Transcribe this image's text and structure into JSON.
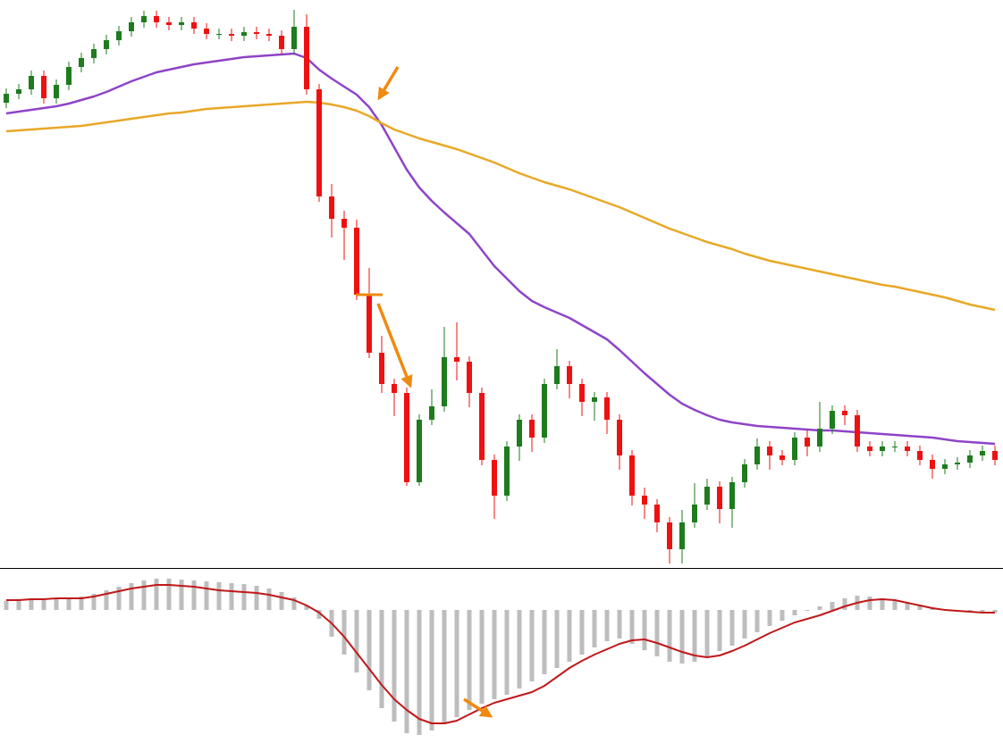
{
  "chart_data": [
    {
      "type": "candlestick",
      "up_color": "#1e7b1e",
      "down_color": "#ee1111",
      "ylim": [
        0,
        636
      ],
      "open": [
        521,
        531,
        536,
        551,
        526,
        541,
        561,
        571,
        581,
        591,
        601,
        611,
        618,
        611,
        608,
        611,
        604,
        598,
        598,
        596,
        600,
        598,
        596,
        581,
        606,
        536,
        416,
        391,
        381,
        306,
        241,
        206,
        196,
        96,
        166,
        181,
        236,
        231,
        196,
        121,
        81,
        136,
        166,
        146,
        206,
        226,
        206,
        186,
        191,
        166,
        126,
        81,
        71,
        51,
        21,
        51,
        71,
        91,
        66,
        96,
        116,
        136,
        126,
        121,
        146,
        136,
        156,
        176,
        171,
        136,
        131,
        136,
        136,
        131,
        121,
        111,
        116,
        118,
        126,
        131
      ],
      "high": [
        537,
        542,
        557,
        557,
        547,
        567,
        577,
        587,
        597,
        607,
        617,
        624,
        624,
        617,
        617,
        617,
        610,
        604,
        604,
        606,
        606,
        604,
        602,
        625,
        620,
        542,
        430,
        400,
        390,
        336,
        260,
        212,
        202,
        172,
        200,
        270,
        275,
        237,
        202,
        127,
        142,
        172,
        172,
        212,
        245,
        232,
        212,
        197,
        197,
        172,
        132,
        90,
        77,
        57,
        65,
        95,
        100,
        97,
        102,
        122,
        145,
        142,
        132,
        152,
        155,
        186,
        182,
        182,
        177,
        142,
        142,
        142,
        142,
        137,
        127,
        122,
        124,
        132,
        137,
        137
      ],
      "low": [
        515,
        525,
        530,
        520,
        520,
        535,
        555,
        565,
        575,
        585,
        595,
        605,
        605,
        602,
        602,
        598,
        592,
        592,
        590,
        590,
        592,
        590,
        575,
        575,
        530,
        410,
        370,
        345,
        300,
        235,
        196,
        170,
        92,
        92,
        160,
        175,
        210,
        180,
        115,
        55,
        75,
        120,
        130,
        140,
        200,
        190,
        170,
        165,
        150,
        110,
        70,
        55,
        40,
        5,
        5,
        45,
        65,
        50,
        45,
        90,
        110,
        110,
        115,
        115,
        125,
        130,
        150,
        160,
        130,
        125,
        125,
        130,
        125,
        115,
        100,
        105,
        110,
        112,
        120,
        115
      ],
      "close": [
        531,
        536,
        551,
        526,
        541,
        561,
        571,
        581,
        591,
        601,
        611,
        618,
        611,
        608,
        611,
        604,
        598,
        598,
        596,
        600,
        598,
        596,
        581,
        606,
        536,
        416,
        391,
        381,
        306,
        241,
        206,
        196,
        96,
        166,
        181,
        236,
        231,
        196,
        121,
        81,
        136,
        166,
        146,
        206,
        226,
        206,
        186,
        191,
        166,
        126,
        81,
        71,
        51,
        21,
        51,
        71,
        91,
        66,
        96,
        116,
        136,
        126,
        121,
        146,
        136,
        156,
        176,
        171,
        136,
        131,
        136,
        136,
        131,
        121,
        111,
        116,
        118,
        126,
        131,
        121
      ],
      "series": [
        {
          "color": "#8e44c8",
          "values": [
            509,
            511,
            513,
            515,
            517,
            520,
            524,
            528,
            533,
            539,
            545,
            550,
            555,
            558,
            561,
            564,
            566,
            568,
            570,
            572,
            573,
            574,
            575,
            576,
            571,
            558,
            548,
            539,
            530,
            516,
            496,
            471,
            446,
            426,
            411,
            398,
            386,
            374,
            356,
            338,
            324,
            310,
            299,
            292,
            286,
            280,
            272,
            264,
            256,
            244,
            231,
            218,
            206,
            194,
            184,
            177,
            171,
            166,
            163,
            161,
            159,
            158,
            157,
            156,
            155,
            154,
            154,
            153,
            152,
            151,
            150,
            149,
            148,
            147,
            146,
            144,
            142,
            141,
            140,
            139
          ]
        },
        {
          "color": "#e8a827",
          "values": [
            489,
            490,
            491,
            492,
            493,
            494,
            495,
            497,
            499,
            501,
            503,
            505,
            507,
            509,
            510,
            512,
            514,
            515,
            516,
            517,
            518,
            519,
            520,
            521,
            522,
            521,
            519,
            516,
            512,
            506,
            498,
            491,
            486,
            481,
            477,
            473,
            469,
            464,
            459,
            454,
            448,
            442,
            437,
            432,
            428,
            424,
            419,
            414,
            409,
            404,
            398,
            392,
            386,
            380,
            375,
            370,
            365,
            361,
            357,
            352,
            348,
            344,
            341,
            338,
            335,
            332,
            329,
            326,
            323,
            320,
            317,
            315,
            312,
            309,
            306,
            303,
            299,
            295,
            292,
            289
          ]
        }
      ]
    },
    {
      "type": "bar",
      "ylim": [
        -149,
        46
      ],
      "series": [
        {
          "kind": "bar",
          "color": "#bdbdbd",
          "values": [
            10,
            10,
            11,
            11,
            12,
            13,
            15,
            18,
            22,
            26,
            30,
            33,
            35,
            35,
            34,
            33,
            32,
            31,
            30,
            29,
            27,
            24,
            20,
            14,
            5,
            -10,
            -30,
            -50,
            -70,
            -90,
            -110,
            -125,
            -138,
            -140,
            -135,
            -128,
            -120,
            -112,
            -105,
            -100,
            -95,
            -88,
            -80,
            -72,
            -65,
            -58,
            -50,
            -42,
            -35,
            -32,
            -38,
            -45,
            -52,
            -58,
            -60,
            -58,
            -52,
            -46,
            -40,
            -32,
            -25,
            -18,
            -12,
            -6,
            -1,
            4,
            9,
            13,
            16,
            15,
            13,
            11,
            9,
            6,
            3,
            1,
            0,
            -1,
            -2,
            -3
          ]
        },
        {
          "kind": "line",
          "color": "#c0181a",
          "values": [
            11,
            11,
            12,
            12,
            13,
            13,
            13,
            15,
            18,
            21,
            24,
            26,
            28,
            28,
            27,
            26,
            24,
            22,
            21,
            20,
            19,
            17,
            14,
            11,
            5,
            -3,
            -15,
            -30,
            -48,
            -66,
            -84,
            -100,
            -112,
            -122,
            -127,
            -127,
            -124,
            -117,
            -110,
            -104,
            -100,
            -96,
            -92,
            -85,
            -75,
            -65,
            -57,
            -50,
            -44,
            -38,
            -34,
            -33,
            -37,
            -42,
            -47,
            -51,
            -53,
            -51,
            -46,
            -40,
            -33,
            -26,
            -20,
            -14,
            -10,
            -6,
            -1,
            4,
            8,
            11,
            12,
            11,
            8,
            5,
            2,
            0,
            -1,
            -2,
            -3,
            -3
          ]
        }
      ]
    }
  ]
}
